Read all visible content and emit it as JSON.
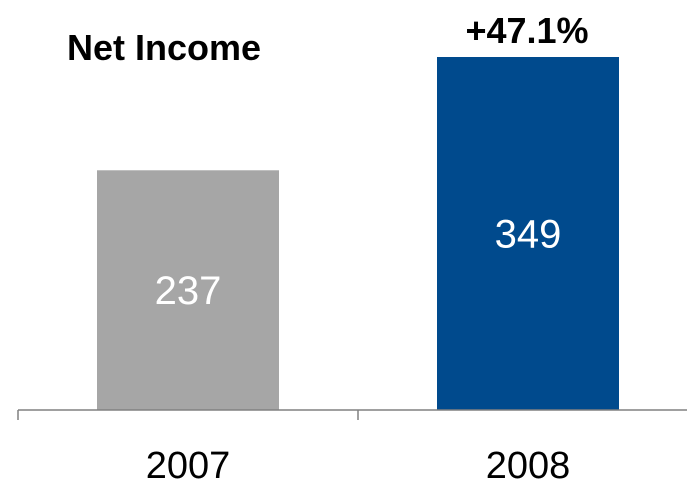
{
  "chart_data": {
    "type": "bar",
    "title": "Net Income",
    "categories": [
      "2007",
      "2008"
    ],
    "values": [
      237,
      349
    ],
    "data_labels": [
      "237",
      "349"
    ],
    "annotation": "+47.1%",
    "colors": [
      "#a6a6a6",
      "#004a8d"
    ],
    "xlabel": "",
    "ylabel": "",
    "ylim": [
      0,
      349
    ],
    "grid": false,
    "legend": "none"
  }
}
